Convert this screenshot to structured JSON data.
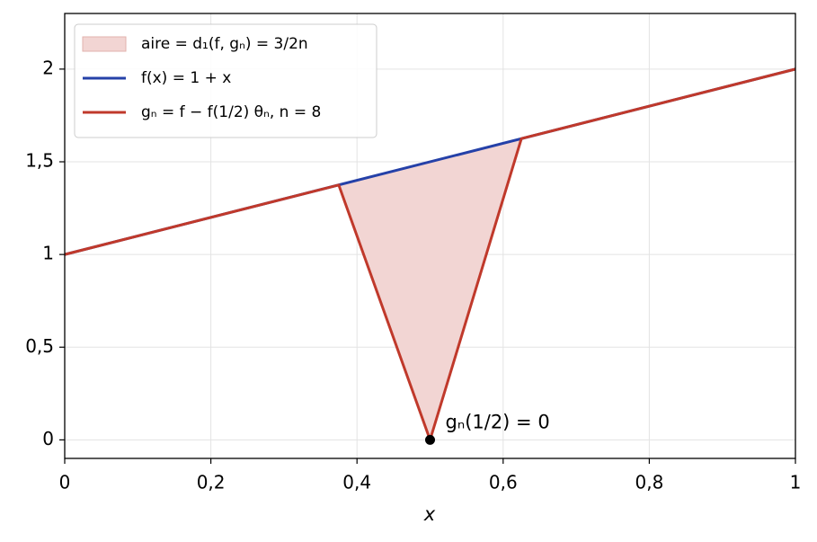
{
  "chart_data": {
    "type": "line",
    "xlabel": "x",
    "xlim": [
      0,
      1
    ],
    "ylim": [
      -0.1,
      2.3
    ],
    "xticks": [
      0,
      {
        "value": 0.2,
        "label": "0,2"
      },
      {
        "value": 0.4,
        "label": "0,4"
      },
      {
        "value": 0.6,
        "label": "0,6"
      },
      {
        "value": 0.8,
        "label": "0,8"
      },
      1
    ],
    "yticks": [
      0,
      {
        "value": 0.5,
        "label": "0,5"
      },
      1,
      {
        "value": 1.5,
        "label": "1,5"
      },
      2
    ],
    "grid": true,
    "legend": "upper left",
    "areas": [
      {
        "name": "aire = d₁(f, gₙ) = 3/2n",
        "color": "#f2d5d3",
        "x": [
          0.375,
          0.5,
          0.625
        ],
        "upper": [
          1.375,
          1.5,
          1.625
        ],
        "lower": [
          1.375,
          0,
          1.625
        ]
      }
    ],
    "series": [
      {
        "name": "f(x) = 1 + x",
        "color": "#2541a8",
        "x": [
          0,
          1
        ],
        "values": [
          1,
          2
        ]
      },
      {
        "name": "gₙ = f − f(1/2) θₙ, n = 8",
        "color": "#c0392b",
        "x": [
          0,
          0.375,
          0.5,
          0.625,
          1
        ],
        "values": [
          1,
          1.375,
          0,
          1.625,
          2
        ]
      }
    ],
    "points": [
      {
        "x": 0.5,
        "y": 0,
        "label": "gₙ(1/2) = 0",
        "color": "#000000"
      }
    ]
  }
}
